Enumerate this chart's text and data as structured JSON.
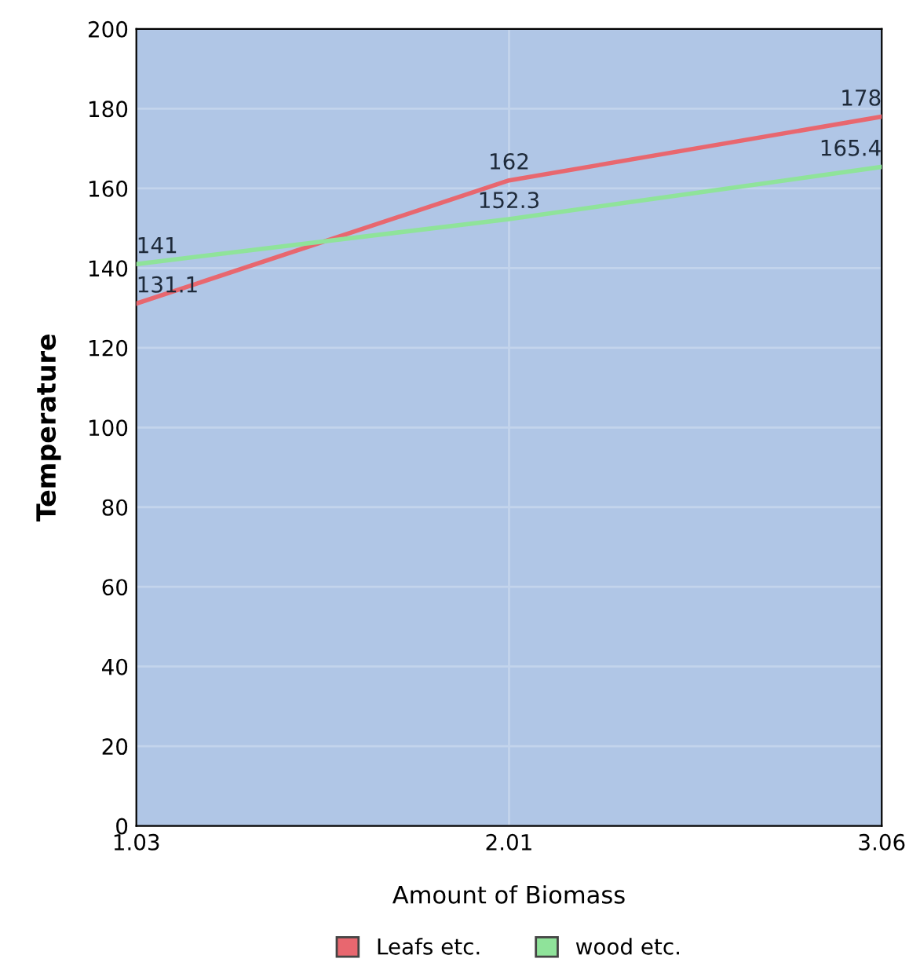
{
  "chart_data": {
    "type": "line",
    "xlabel": "Amount of Biomass",
    "ylabel": "Temperature",
    "categories": [
      "1.03",
      "2.01",
      "3.06"
    ],
    "series": [
      {
        "name": "Leafs etc.",
        "color": "#e8676f",
        "values": [
          131.1,
          162,
          178
        ]
      },
      {
        "name": "wood etc.",
        "color": "#8fe39a",
        "values": [
          141,
          152.3,
          165.4
        ]
      }
    ],
    "ylim": [
      0,
      200
    ],
    "yticks": [
      0,
      20,
      40,
      60,
      80,
      100,
      120,
      140,
      160,
      180,
      200
    ],
    "grid": true,
    "legend": "bottom",
    "data_labels": true,
    "marker": "none",
    "line_style": "solid"
  }
}
